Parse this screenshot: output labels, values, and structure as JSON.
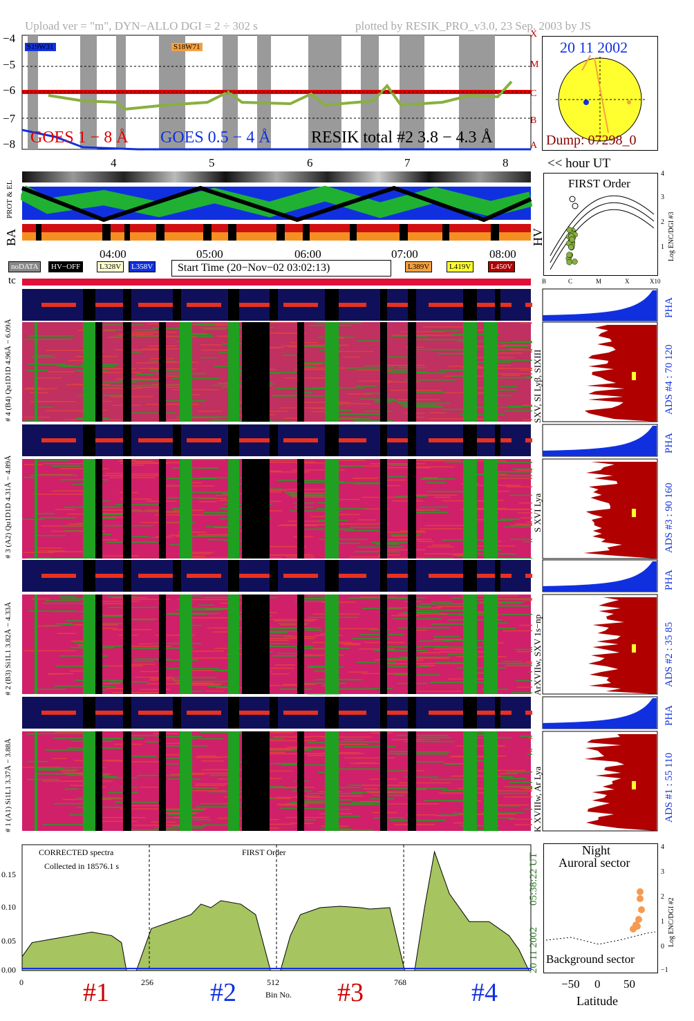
{
  "header": {
    "left": "Upload ver = \"m\", DYN−ALLO DGI =   2 ÷ 302 s",
    "right": "plotted by RESIK_PRO_v3.0, 23 Sep. 2003 by JS"
  },
  "goes": {
    "label1": "GOES 1 − 8 Å",
    "label2": "GOES 0.5 − 4 Å",
    "label3": "RESIK total #2  3.8 − 4.3 Å",
    "tag1": "S19W31",
    "tag2": "S18W71",
    "yticks": [
      "−4",
      "−5",
      "−6",
      "−7",
      "−8"
    ],
    "classes": [
      "X",
      "M",
      "C",
      "B",
      "A"
    ],
    "xticks": [
      "4",
      "5",
      "6",
      "7",
      "8"
    ],
    "hour_ut": "<< hour UT",
    "colors": {
      "l18": "#e00000",
      "l05": "#1030e0",
      "resik": "#88b040"
    }
  },
  "sun": {
    "date": "20 11 2002",
    "dump": "Dump: 07298_0"
  },
  "orbit": {
    "prot_el": "PROT & EL",
    "ba": "BA",
    "hv": "HV"
  },
  "time_axis": {
    "labels": [
      "04:00",
      "05:00",
      "06:00",
      "07:00",
      "08:00"
    ]
  },
  "legend": {
    "nodata": "noDATA",
    "hvoff": "HV−OFF",
    "v328": "L328V",
    "v358": "L358V",
    "start": "Start Time (20−Nov−02 03:02:13)",
    "v389": "L389V",
    "v419": "L419V",
    "v450": "L450V",
    "tc": "tc"
  },
  "first_order": {
    "title": "FIRST Order",
    "ylabel": "Log ENC/DGI #3",
    "xclasses": [
      "B",
      "C",
      "M",
      "X",
      "X10"
    ],
    "yticks": [
      "1",
      "2",
      "3",
      "4"
    ]
  },
  "channels": [
    {
      "pha_label": "# 4 (B4) Qu1D1D 4.96Å − 6.09Å",
      "label": "",
      "side": "SXV, SI Lyβ, SIXIII",
      "ads": "ADS #4 :    70 120",
      "pha": "PHA"
    },
    {
      "pha_label": "# 3 (A2) Qu1D1D 4.31Å − 4.89Å",
      "label": "",
      "side": "S XVI Lya",
      "ads": "ADS #3 :    90 160",
      "pha": "PHA"
    },
    {
      "pha_label": "# 2 (B3) Si1L1 3.82Å − 4.33Å",
      "label": "",
      "side": "ArXVIIw, SXV 1s−np",
      "ads": "ADS #2 :    35  85",
      "pha": "PHA"
    },
    {
      "pha_label": "# 1 (A1) Si1L1 3.37Å − 3.88Å",
      "label": "",
      "side": "K XVIIIw, Ar Lya",
      "ads": "ADS #1 :    55 110",
      "pha": "PHA"
    }
  ],
  "spectrum": {
    "title1": "CORRECTED spectra",
    "title2": "Collected in 18576.1 s",
    "center": "FIRST Order",
    "xlabel": "Bin No.",
    "xticks": [
      "0",
      "256",
      "512",
      "768"
    ],
    "yticks": [
      "0.00",
      "0.05",
      "0.10",
      "0.15"
    ],
    "time": "05:38:22 UT",
    "date": "20 11 2002",
    "sections": [
      "#1",
      "#2",
      "#3",
      "#4"
    ],
    "section_colors": [
      "#cc0000",
      "#1030e0",
      "#cc0000",
      "#1030e0"
    ]
  },
  "night": {
    "title1": "Night",
    "title2": "Auroral sector",
    "bottom": "Background sector",
    "xlabel": "Latitude",
    "ylabel": "Log ENC/DGI #2",
    "xticks": [
      "−50",
      "0",
      "50"
    ],
    "yticks": [
      "−1",
      "0",
      "1",
      "2",
      "3",
      "4"
    ]
  },
  "chart_data": {
    "type": "line",
    "title": "",
    "xlabel": "Bin No.",
    "ylabel": "",
    "xlim": [
      0,
      1024
    ],
    "ylim": [
      0,
      0.18
    ],
    "series": [
      {
        "name": "CORRECTED spectra",
        "x": [
          0,
          20,
          60,
          100,
          140,
          180,
          200,
          210,
          230,
          260,
          300,
          340,
          360,
          380,
          400,
          440,
          470,
          500,
          520,
          540,
          560,
          600,
          640,
          680,
          700,
          740,
          770,
          790,
          810,
          830,
          860,
          900,
          940,
          980,
          1000,
          1020
        ],
        "values": [
          0.02,
          0.04,
          0.045,
          0.05,
          0.055,
          0.05,
          0.04,
          0.0,
          0.0,
          0.06,
          0.07,
          0.08,
          0.095,
          0.09,
          0.1,
          0.095,
          0.08,
          0.0,
          0.0,
          0.05,
          0.08,
          0.09,
          0.092,
          0.09,
          0.088,
          0.09,
          0.0,
          0.0,
          0.09,
          0.17,
          0.11,
          0.07,
          0.07,
          0.05,
          0.03,
          0.0
        ]
      }
    ]
  }
}
